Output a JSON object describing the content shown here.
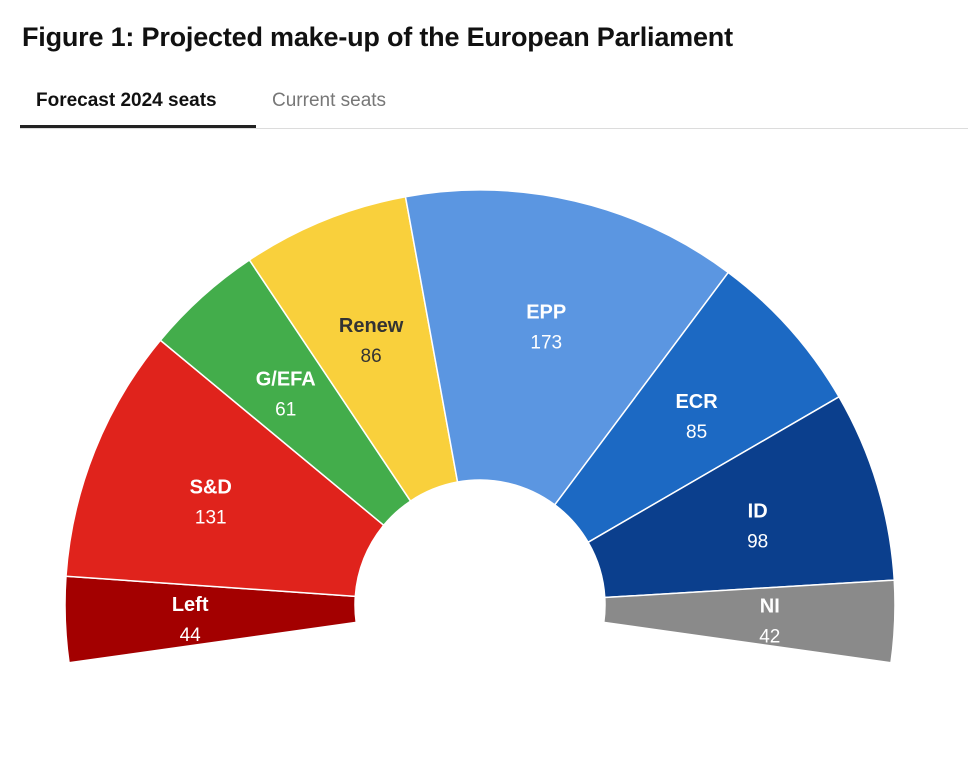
{
  "title": "Figure 1: Projected make-up of the European Parliament",
  "tabs": [
    {
      "label": "Forecast 2024 seats",
      "active": true
    },
    {
      "label": "Current seats",
      "active": false
    }
  ],
  "chart_data": {
    "type": "pie",
    "variant": "parliament-half-donut",
    "categories": [
      "Left",
      "S&D",
      "G/EFA",
      "Renew",
      "EPP",
      "ECR",
      "ID",
      "NI"
    ],
    "values": [
      44,
      131,
      61,
      86,
      173,
      85,
      98,
      42
    ],
    "colors": [
      "#a30000",
      "#e0231c",
      "#43ad4b",
      "#f9d03c",
      "#5b96e1",
      "#1c69c3",
      "#0b3f8d",
      "#8a8a8a"
    ],
    "label_colors": [
      "#ffffff",
      "#ffffff",
      "#ffffff",
      "#333333",
      "#ffffff",
      "#ffffff",
      "#ffffff",
      "#ffffff"
    ]
  }
}
